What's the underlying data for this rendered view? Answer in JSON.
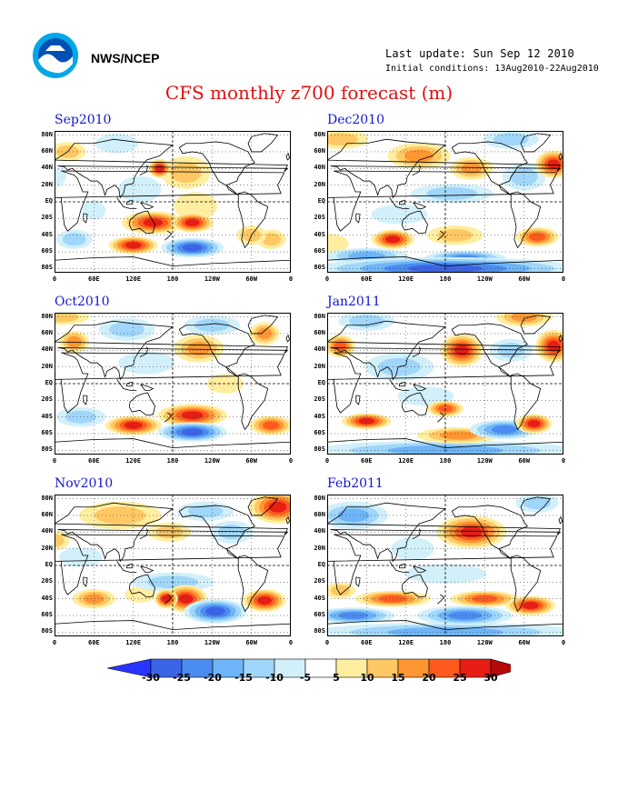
{
  "header": {
    "org": "NWS/NCEP",
    "last_update": "Last update: Sun Sep 12 2010",
    "initial_conditions": "Initial conditions: 13Aug2010-22Aug2010",
    "title": "CFS monthly z700 forecast (m)"
  },
  "panels": [
    {
      "title": "Sep2010",
      "blobs": [
        {
          "lon": 150,
          "lat": -25,
          "rx": 45,
          "ry": 12,
          "v": 25
        },
        {
          "lon": 210,
          "lat": -25,
          "rx": 30,
          "ry": 10,
          "v": 28
        },
        {
          "lon": 120,
          "lat": -52,
          "rx": 35,
          "ry": 9,
          "v": 25
        },
        {
          "lon": 210,
          "lat": -55,
          "rx": 45,
          "ry": 10,
          "v": -25
        },
        {
          "lon": 200,
          "lat": 35,
          "rx": 35,
          "ry": 18,
          "v": 12
        },
        {
          "lon": 215,
          "lat": -5,
          "rx": 30,
          "ry": 15,
          "v": 8
        },
        {
          "lon": 130,
          "lat": 15,
          "rx": 30,
          "ry": 14,
          "v": -8
        },
        {
          "lon": 160,
          "lat": 40,
          "rx": 14,
          "ry": 10,
          "v": 25
        },
        {
          "lon": 20,
          "lat": 60,
          "rx": 25,
          "ry": 10,
          "v": 12
        },
        {
          "lon": 95,
          "lat": 70,
          "rx": 30,
          "ry": 10,
          "v": -8
        },
        {
          "lon": 330,
          "lat": -45,
          "rx": 20,
          "ry": 10,
          "v": 10
        },
        {
          "lon": 30,
          "lat": -45,
          "rx": 25,
          "ry": 10,
          "v": -10
        },
        {
          "lon": 60,
          "lat": -10,
          "rx": 15,
          "ry": 10,
          "v": -8
        },
        {
          "lon": 300,
          "lat": -40,
          "rx": 20,
          "ry": 10,
          "v": 12
        },
        {
          "lon": 0,
          "lat": 30,
          "rx": 15,
          "ry": 10,
          "v": -8
        }
      ]
    },
    {
      "title": "Dec2010",
      "blobs": [
        {
          "lon": 180,
          "lat": -80,
          "rx": 200,
          "ry": 12,
          "v": -25
        },
        {
          "lon": 60,
          "lat": -65,
          "rx": 60,
          "ry": 8,
          "v": -15
        },
        {
          "lon": 0,
          "lat": -50,
          "rx": 30,
          "ry": 10,
          "v": 8
        },
        {
          "lon": 100,
          "lat": -45,
          "rx": 30,
          "ry": 10,
          "v": 25
        },
        {
          "lon": 195,
          "lat": -40,
          "rx": 40,
          "ry": 10,
          "v": 12
        },
        {
          "lon": 320,
          "lat": -42,
          "rx": 30,
          "ry": 10,
          "v": 22
        },
        {
          "lon": 210,
          "lat": -68,
          "rx": 60,
          "ry": 8,
          "v": -20
        },
        {
          "lon": 140,
          "lat": 55,
          "rx": 45,
          "ry": 14,
          "v": 15
        },
        {
          "lon": 220,
          "lat": 40,
          "rx": 30,
          "ry": 12,
          "v": 15
        },
        {
          "lon": 345,
          "lat": 45,
          "rx": 25,
          "ry": 15,
          "v": 28
        },
        {
          "lon": 190,
          "lat": 10,
          "rx": 60,
          "ry": 10,
          "v": -10
        },
        {
          "lon": 20,
          "lat": 75,
          "rx": 40,
          "ry": 10,
          "v": 12
        },
        {
          "lon": 280,
          "lat": 75,
          "rx": 40,
          "ry": 10,
          "v": -10
        },
        {
          "lon": 300,
          "lat": 30,
          "rx": 30,
          "ry": 15,
          "v": -10
        },
        {
          "lon": 110,
          "lat": -15,
          "rx": 40,
          "ry": 10,
          "v": -5
        }
      ]
    },
    {
      "title": "Oct2010",
      "blobs": [
        {
          "lon": 120,
          "lat": -50,
          "rx": 40,
          "ry": 10,
          "v": 25
        },
        {
          "lon": 210,
          "lat": -38,
          "rx": 50,
          "ry": 12,
          "v": 25
        },
        {
          "lon": 210,
          "lat": -58,
          "rx": 50,
          "ry": 10,
          "v": -25
        },
        {
          "lon": 330,
          "lat": -50,
          "rx": 30,
          "ry": 10,
          "v": 22
        },
        {
          "lon": 220,
          "lat": 42,
          "rx": 35,
          "ry": 15,
          "v": 18
        },
        {
          "lon": 40,
          "lat": -40,
          "rx": 35,
          "ry": 10,
          "v": -12
        },
        {
          "lon": 140,
          "lat": 25,
          "rx": 40,
          "ry": 12,
          "v": -8
        },
        {
          "lon": 110,
          "lat": 65,
          "rx": 40,
          "ry": 12,
          "v": -10
        },
        {
          "lon": 30,
          "lat": 50,
          "rx": 20,
          "ry": 12,
          "v": 15
        },
        {
          "lon": 240,
          "lat": 70,
          "rx": 40,
          "ry": 10,
          "v": -10
        },
        {
          "lon": 320,
          "lat": 60,
          "rx": 20,
          "ry": 12,
          "v": 15
        },
        {
          "lon": 10,
          "lat": 80,
          "rx": 40,
          "ry": 8,
          "v": 10
        },
        {
          "lon": 260,
          "lat": 0,
          "rx": 25,
          "ry": 10,
          "v": 6
        }
      ]
    },
    {
      "title": "Jan2011",
      "blobs": [
        {
          "lon": 180,
          "lat": -80,
          "rx": 200,
          "ry": 10,
          "v": -15
        },
        {
          "lon": 60,
          "lat": -45,
          "rx": 35,
          "ry": 8,
          "v": 28
        },
        {
          "lon": 180,
          "lat": -30,
          "rx": 25,
          "ry": 8,
          "v": 20
        },
        {
          "lon": 270,
          "lat": -55,
          "rx": 50,
          "ry": 10,
          "v": -22
        },
        {
          "lon": 315,
          "lat": -48,
          "rx": 25,
          "ry": 10,
          "v": 25
        },
        {
          "lon": 200,
          "lat": -62,
          "rx": 60,
          "ry": 8,
          "v": 15
        },
        {
          "lon": 205,
          "lat": 40,
          "rx": 30,
          "ry": 18,
          "v": 25
        },
        {
          "lon": 345,
          "lat": 45,
          "rx": 25,
          "ry": 18,
          "v": 25
        },
        {
          "lon": 20,
          "lat": 45,
          "rx": 20,
          "ry": 12,
          "v": 22
        },
        {
          "lon": 300,
          "lat": 80,
          "rx": 40,
          "ry": 10,
          "v": 18
        },
        {
          "lon": 110,
          "lat": 20,
          "rx": 50,
          "ry": 15,
          "v": -10
        },
        {
          "lon": 280,
          "lat": 40,
          "rx": 30,
          "ry": 12,
          "v": -12
        },
        {
          "lon": 60,
          "lat": 75,
          "rx": 40,
          "ry": 10,
          "v": -10
        },
        {
          "lon": 150,
          "lat": -15,
          "rx": 40,
          "ry": 10,
          "v": -6
        }
      ]
    },
    {
      "title": "Nov2010",
      "blobs": [
        {
          "lon": 200,
          "lat": -40,
          "rx": 30,
          "ry": 15,
          "v": 25
        },
        {
          "lon": 170,
          "lat": -40,
          "rx": 15,
          "ry": 10,
          "v": 28
        },
        {
          "lon": 245,
          "lat": -55,
          "rx": 45,
          "ry": 13,
          "v": -25
        },
        {
          "lon": 320,
          "lat": -42,
          "rx": 30,
          "ry": 12,
          "v": 25
        },
        {
          "lon": 60,
          "lat": -40,
          "rx": 30,
          "ry": 10,
          "v": 18
        },
        {
          "lon": 130,
          "lat": -35,
          "rx": 20,
          "ry": 8,
          "v": 8
        },
        {
          "lon": 180,
          "lat": -20,
          "rx": 60,
          "ry": 10,
          "v": -10
        },
        {
          "lon": 340,
          "lat": 70,
          "rx": 40,
          "ry": 18,
          "v": 25
        },
        {
          "lon": 100,
          "lat": 60,
          "rx": 60,
          "ry": 15,
          "v": 12
        },
        {
          "lon": 230,
          "lat": 65,
          "rx": 40,
          "ry": 10,
          "v": -12
        },
        {
          "lon": 270,
          "lat": 40,
          "rx": 30,
          "ry": 12,
          "v": -12
        },
        {
          "lon": 175,
          "lat": 40,
          "rx": 30,
          "ry": 10,
          "v": 12
        },
        {
          "lon": 40,
          "lat": 10,
          "rx": 30,
          "ry": 10,
          "v": -6
        },
        {
          "lon": 0,
          "lat": 30,
          "rx": 20,
          "ry": 10,
          "v": 10
        }
      ]
    },
    {
      "title": "Feb2011",
      "blobs": [
        {
          "lon": 180,
          "lat": -80,
          "rx": 200,
          "ry": 10,
          "v": -18
        },
        {
          "lon": 220,
          "lat": 40,
          "rx": 50,
          "ry": 18,
          "v": 28
        },
        {
          "lon": 100,
          "lat": -40,
          "rx": 55,
          "ry": 8,
          "v": 22
        },
        {
          "lon": 240,
          "lat": -40,
          "rx": 50,
          "ry": 8,
          "v": 20
        },
        {
          "lon": 210,
          "lat": -60,
          "rx": 70,
          "ry": 10,
          "v": -22
        },
        {
          "lon": 40,
          "lat": -60,
          "rx": 60,
          "ry": 8,
          "v": -20
        },
        {
          "lon": 310,
          "lat": -48,
          "rx": 35,
          "ry": 10,
          "v": 25
        },
        {
          "lon": 40,
          "lat": 60,
          "rx": 50,
          "ry": 15,
          "v": -15
        },
        {
          "lon": 320,
          "lat": 75,
          "rx": 30,
          "ry": 10,
          "v": -12
        },
        {
          "lon": 180,
          "lat": -10,
          "rx": 60,
          "ry": 10,
          "v": -8
        },
        {
          "lon": 130,
          "lat": 20,
          "rx": 30,
          "ry": 12,
          "v": -8
        },
        {
          "lon": 20,
          "lat": -30,
          "rx": 20,
          "ry": 8,
          "v": 10
        }
      ]
    }
  ],
  "lat_labels": [
    "80N",
    "60N",
    "40N",
    "20N",
    "EQ",
    "20S",
    "40S",
    "60S",
    "80S"
  ],
  "lon_labels": [
    "0",
    "60E",
    "120E",
    "180",
    "120W",
    "60W",
    "0"
  ],
  "colorbar": {
    "labels": [
      "-30",
      "-25",
      "-20",
      "-15",
      "-10",
      "-5",
      "5",
      "10",
      "15",
      "20",
      "25",
      "30"
    ],
    "colors": [
      "#2a34ff",
      "#3c64e6",
      "#4a8cf0",
      "#6eb4f8",
      "#a0d6fa",
      "#d2f0fa",
      "#ffffff",
      "#ffeea0",
      "#ffc864",
      "#ff9632",
      "#ff5a1e",
      "#e61e14",
      "#b40a0a"
    ]
  }
}
